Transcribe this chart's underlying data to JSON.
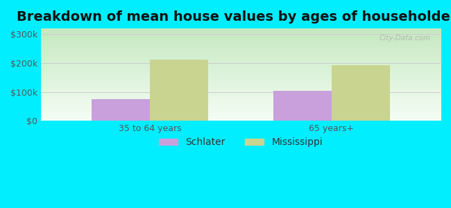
{
  "title": "Breakdown of mean house values by ages of householders",
  "categories": [
    "35 to 64 years",
    "65 years+"
  ],
  "schlater_values": [
    75000,
    103000
  ],
  "mississippi_values": [
    213000,
    193000
  ],
  "schlater_color": "#c9a0dc",
  "mississippi_color": "#c8d490",
  "ylim": [
    0,
    320000
  ],
  "yticks": [
    0,
    100000,
    200000,
    300000
  ],
  "ytick_labels": [
    "$0",
    "$100k",
    "$200k",
    "$300k"
  ],
  "background_color": "#00eeff",
  "plot_bg_top": "#f5fdf5",
  "plot_bg_bottom": "#c5e8c0",
  "bar_width": 0.32,
  "legend_labels": [
    "Schlater",
    "Mississippi"
  ],
  "watermark": "City-Data.com",
  "title_fontsize": 14,
  "tick_fontsize": 9,
  "legend_fontsize": 10
}
